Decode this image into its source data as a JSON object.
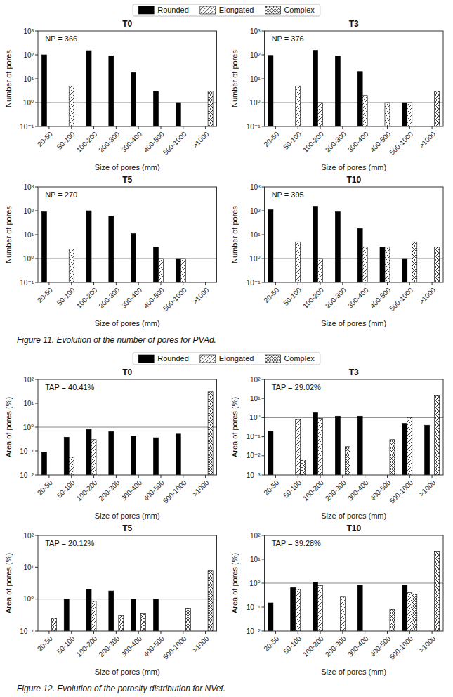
{
  "chart_data": [
    {
      "type": "bar",
      "title": "T0",
      "subtitle": "Figure 11. Evolution of the number of pores for PVAd.",
      "xlabel": "Size of pores (mm)",
      "ylabel": "Number of pores",
      "categories": [
        "20-50",
        "50-100",
        "100-200",
        "200-300",
        "300-400",
        "400-500",
        "500-1000",
        ">1000"
      ],
      "series": [
        {
          "name": "Rounded",
          "color": "black",
          "values": [
            100,
            null,
            150,
            90,
            18,
            3,
            1,
            null
          ]
        },
        {
          "name": "Elongated",
          "color": "white",
          "values": [
            null,
            5,
            null,
            null,
            null,
            null,
            null,
            null
          ]
        },
        {
          "name": "Complex",
          "color": "white",
          "values": [
            null,
            null,
            null,
            null,
            null,
            null,
            null,
            3
          ]
        }
      ],
      "ylim": [
        0.1,
        1000
      ],
      "yticks": [
        {
          "value": 0.1,
          "label": "10⁻¹"
        },
        {
          "value": 1,
          "label": "10⁰"
        },
        {
          "value": 10,
          "label": "10¹"
        },
        {
          "value": 100,
          "label": "10²"
        },
        {
          "value": 1000,
          "label": "10³"
        }
      ],
      "log": "y",
      "grid": false,
      "legend": "top",
      "annotations": [
        "NP = 366"
      ],
      "hline": {
        "value": 1.0,
        "color": "#888888"
      }
    },
    {
      "type": "bar",
      "title": "T3",
      "xlabel": "Size of pores (mm)",
      "ylabel": "Number of pores",
      "categories": [
        "20-50",
        "50-100",
        "100-200",
        "200-300",
        "300-400",
        "400-500",
        "500-1000",
        ">1000"
      ],
      "series": [
        {
          "name": "Rounded",
          "color": "black",
          "values": [
            95,
            null,
            155,
            88,
            20,
            null,
            1,
            null
          ]
        },
        {
          "name": "Elongated",
          "color": "white",
          "values": [
            null,
            5,
            1,
            null,
            2,
            1,
            1,
            null
          ]
        },
        {
          "name": "Complex",
          "color": "white",
          "values": [
            null,
            null,
            null,
            null,
            null,
            null,
            null,
            3
          ]
        }
      ],
      "ylim": [
        0.1,
        1000
      ],
      "yticks": [
        {
          "value": 0.1,
          "label": "10⁻¹"
        },
        {
          "value": 1,
          "label": "10⁰"
        },
        {
          "value": 10,
          "label": "10¹"
        },
        {
          "value": 100,
          "label": "10²"
        },
        {
          "value": 1000,
          "label": "10³"
        }
      ],
      "log": "y",
      "grid": false,
      "annotations": [
        "NP = 376"
      ],
      "hline": {
        "value": 1.0,
        "color": "#888888"
      }
    },
    {
      "type": "bar",
      "title": "T5",
      "xlabel": "Size of pores (mm)",
      "ylabel": "Number of pores",
      "categories": [
        "20-50",
        "50-100",
        "100-200",
        "200-300",
        "300-400",
        "400-500",
        "500-1000",
        ">1000"
      ],
      "series": [
        {
          "name": "Rounded",
          "color": "black",
          "values": [
            90,
            null,
            100,
            60,
            11,
            3,
            1,
            null
          ]
        },
        {
          "name": "Elongated",
          "color": "white",
          "values": [
            null,
            2.5,
            null,
            null,
            null,
            1,
            1,
            null
          ]
        },
        {
          "name": "Complex",
          "color": "white",
          "values": [
            null,
            null,
            null,
            null,
            null,
            null,
            null,
            null
          ]
        }
      ],
      "ylim": [
        0.1,
        1000
      ],
      "yticks": [
        {
          "value": 0.1,
          "label": "10⁻¹"
        },
        {
          "value": 1,
          "label": "10⁰"
        },
        {
          "value": 10,
          "label": "10¹"
        },
        {
          "value": 100,
          "label": "10²"
        },
        {
          "value": 1000,
          "label": "10³"
        }
      ],
      "log": "y",
      "grid": false,
      "annotations": [
        "NP = 270"
      ],
      "hline": {
        "value": 1.0,
        "color": "#888888"
      }
    },
    {
      "type": "bar",
      "title": "T10",
      "xlabel": "Size of pores (mm)",
      "ylabel": "Number of pores",
      "categories": [
        "20-50",
        "50-100",
        "100-200",
        "200-300",
        "300-400",
        "400-500",
        "500-1000",
        ">1000"
      ],
      "series": [
        {
          "name": "Rounded",
          "color": "black",
          "values": [
            110,
            null,
            155,
            90,
            18,
            3,
            1,
            null
          ]
        },
        {
          "name": "Elongated",
          "color": "white",
          "values": [
            null,
            5,
            1,
            null,
            3,
            3,
            null,
            null
          ]
        },
        {
          "name": "Complex",
          "color": "white",
          "values": [
            null,
            null,
            null,
            null,
            null,
            null,
            5,
            3
          ]
        }
      ],
      "ylim": [
        0.1,
        1000
      ],
      "yticks": [
        {
          "value": 0.1,
          "label": "10⁻¹"
        },
        {
          "value": 1,
          "label": "10⁰"
        },
        {
          "value": 10,
          "label": "10¹"
        },
        {
          "value": 100,
          "label": "10²"
        },
        {
          "value": 1000,
          "label": "10³"
        }
      ],
      "log": "y",
      "grid": false,
      "annotations": [
        "NP = 395"
      ],
      "hline": {
        "value": 1.0,
        "color": "#888888"
      }
    },
    {
      "type": "bar",
      "title": "T0",
      "subtitle": "Figure 12. Evolution of the porosity distribution for NVef.",
      "xlabel": "Size of pores (mm)",
      "ylabel": "Area of pores (%)",
      "categories": [
        "20-50",
        "50-100",
        "100-200",
        "200-300",
        "300-400",
        "400-500",
        "500-1000",
        ">1000"
      ],
      "series": [
        {
          "name": "Rounded",
          "color": "black",
          "values": [
            0.09,
            0.38,
            0.8,
            0.65,
            0.42,
            0.36,
            0.55,
            null
          ]
        },
        {
          "name": "Elongated",
          "color": "white",
          "values": [
            null,
            0.055,
            0.3,
            null,
            null,
            null,
            null,
            null
          ]
        },
        {
          "name": "Complex",
          "color": "white",
          "values": [
            null,
            null,
            null,
            null,
            null,
            null,
            null,
            30
          ]
        }
      ],
      "ylim": [
        0.01,
        100
      ],
      "yticks": [
        {
          "value": 0.01,
          "label": "10⁻²"
        },
        {
          "value": 0.1,
          "label": "10⁻¹"
        },
        {
          "value": 1,
          "label": "10⁰"
        },
        {
          "value": 10,
          "label": "10¹"
        },
        {
          "value": 100,
          "label": "10²"
        }
      ],
      "log": "y",
      "grid": false,
      "legend": "top",
      "annotations": [
        "TAP = 40.41%"
      ],
      "hline": {
        "value": 1.0,
        "color": "#888888"
      }
    },
    {
      "type": "bar",
      "title": "T3",
      "xlabel": "Size of pores (mm)",
      "ylabel": "Area of pores (%)",
      "categories": [
        "20-50",
        "50-100",
        "100-200",
        "200-300",
        "300-400",
        "400-500",
        "500-1000",
        ">1000"
      ],
      "series": [
        {
          "name": "Rounded",
          "color": "black",
          "values": [
            0.2,
            null,
            1.8,
            1.2,
            1.2,
            null,
            0.5,
            0.4
          ]
        },
        {
          "name": "Elongated",
          "color": "white",
          "values": [
            null,
            0.8,
            0.9,
            null,
            null,
            null,
            1.0,
            null
          ]
        },
        {
          "name": "Complex",
          "color": "white",
          "values": [
            null,
            0.006,
            null,
            0.03,
            null,
            0.07,
            null,
            15
          ]
        }
      ],
      "ylim": [
        0.001,
        100
      ],
      "yticks": [
        {
          "value": 0.001,
          "label": "10⁻³"
        },
        {
          "value": 0.01,
          "label": "10⁻²"
        },
        {
          "value": 0.1,
          "label": "10⁻¹"
        },
        {
          "value": 1,
          "label": "10⁰"
        },
        {
          "value": 10,
          "label": "10¹"
        },
        {
          "value": 100,
          "label": "10²"
        }
      ],
      "log": "y",
      "grid": false,
      "annotations": [
        "TAP = 29.02%"
      ],
      "hline": {
        "value": 1.0,
        "color": "#888888"
      }
    },
    {
      "type": "bar",
      "title": "T5",
      "xlabel": "Size of pores (mm)",
      "ylabel": "Area of pores (%)",
      "categories": [
        "20-50",
        "50-100",
        "100-200",
        "200-300",
        "300-400",
        "400-500",
        "500-1000",
        ">1000"
      ],
      "series": [
        {
          "name": "Rounded",
          "color": "black",
          "values": [
            null,
            1.0,
            2.0,
            1.8,
            1.0,
            1.0,
            null,
            null
          ]
        },
        {
          "name": "Elongated",
          "color": "white",
          "values": [
            null,
            null,
            0.85,
            null,
            null,
            null,
            null,
            null
          ]
        },
        {
          "name": "Complex",
          "color": "white",
          "values": [
            0.25,
            null,
            null,
            0.3,
            0.35,
            null,
            0.5,
            8
          ]
        }
      ],
      "ylim": [
        0.1,
        100
      ],
      "yticks": [
        {
          "value": 0.1,
          "label": "10⁻¹"
        },
        {
          "value": 1,
          "label": "10⁰"
        },
        {
          "value": 10,
          "label": "10¹"
        },
        {
          "value": 100,
          "label": "10²"
        }
      ],
      "log": "y",
      "grid": false,
      "annotations": [
        "TAP = 20.12%"
      ],
      "hline": {
        "value": 1.0,
        "color": "#888888"
      }
    },
    {
      "type": "bar",
      "title": "T10",
      "xlabel": "Size of pores (mm)",
      "ylabel": "Area of pores (%)",
      "categories": [
        "20-50",
        "50-100",
        "100-200",
        "200-300",
        "300-400",
        "400-500",
        "500-1000",
        ">1000"
      ],
      "series": [
        {
          "name": "Rounded",
          "color": "black",
          "values": [
            0.15,
            0.65,
            1.1,
            null,
            0.85,
            null,
            0.85,
            null
          ]
        },
        {
          "name": "Elongated",
          "color": "white",
          "values": [
            null,
            0.55,
            0.8,
            0.28,
            null,
            null,
            0.4,
            null
          ]
        },
        {
          "name": "Complex",
          "color": "white",
          "values": [
            null,
            null,
            null,
            null,
            null,
            0.08,
            0.35,
            22
          ]
        }
      ],
      "ylim": [
        0.01,
        100
      ],
      "yticks": [
        {
          "value": 0.01,
          "label": "10⁻²"
        },
        {
          "value": 0.1,
          "label": "10⁻¹"
        },
        {
          "value": 1,
          "label": "10⁰"
        },
        {
          "value": 10,
          "label": "10¹"
        },
        {
          "value": 100,
          "label": "10²"
        }
      ],
      "log": "y",
      "grid": false,
      "annotations": [
        "TAP = 39.28%"
      ],
      "hline": {
        "value": 1.0,
        "color": "#888888"
      }
    }
  ]
}
